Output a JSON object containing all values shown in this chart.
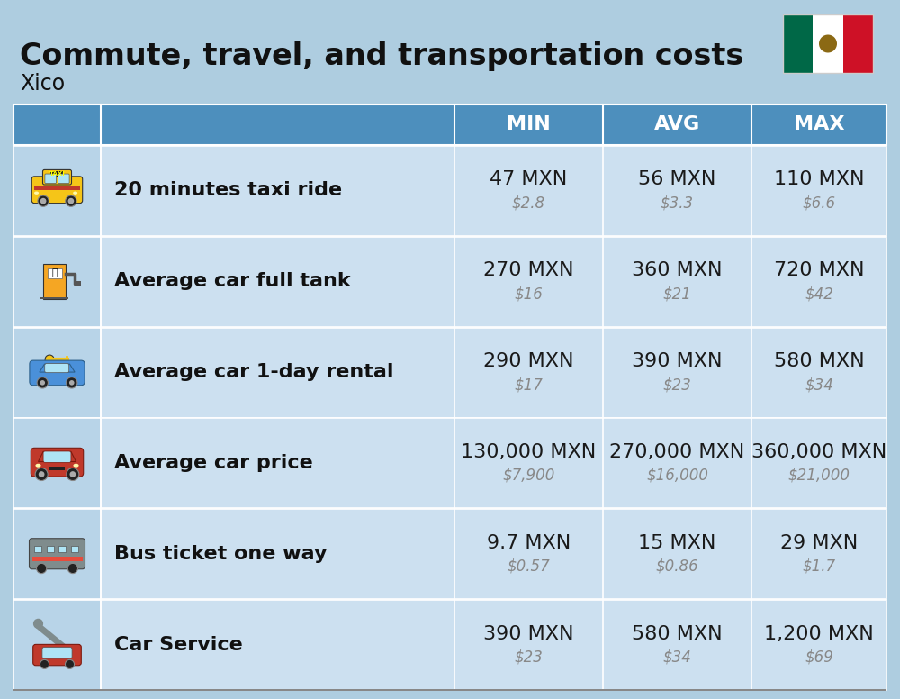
{
  "title": "Commute, travel, and transportation costs",
  "subtitle": "Xico",
  "header_bg": "#4d8fbd",
  "header_text_color": "#ffffff",
  "row_bg": "#cce0f0",
  "icon_bg": "#b8d4e8",
  "bg_color": "#aecde0",
  "title_color": "#111111",
  "subtitle_color": "#111111",
  "mxn_color": "#1a1a1a",
  "usd_color": "#888888",
  "rows": [
    {
      "label": "20 minutes taxi ride",
      "min_mxn": "47 MXN",
      "min_usd": "$2.8",
      "avg_mxn": "56 MXN",
      "avg_usd": "$3.3",
      "max_mxn": "110 MXN",
      "max_usd": "$6.6"
    },
    {
      "label": "Average car full tank",
      "min_mxn": "270 MXN",
      "min_usd": "$16",
      "avg_mxn": "360 MXN",
      "avg_usd": "$21",
      "max_mxn": "720 MXN",
      "max_usd": "$42"
    },
    {
      "label": "Average car 1-day rental",
      "min_mxn": "290 MXN",
      "min_usd": "$17",
      "avg_mxn": "390 MXN",
      "avg_usd": "$23",
      "max_mxn": "580 MXN",
      "max_usd": "$34"
    },
    {
      "label": "Average car price",
      "min_mxn": "130,000 MXN",
      "min_usd": "$7,900",
      "avg_mxn": "270,000 MXN",
      "avg_usd": "$16,000",
      "max_mxn": "360,000 MXN",
      "max_usd": "$21,000"
    },
    {
      "label": "Bus ticket one way",
      "min_mxn": "9.7 MXN",
      "min_usd": "$0.57",
      "avg_mxn": "15 MXN",
      "avg_usd": "$0.86",
      "max_mxn": "29 MXN",
      "max_usd": "$1.7"
    },
    {
      "label": "Car Service",
      "min_mxn": "390 MXN",
      "min_usd": "$23",
      "avg_mxn": "580 MXN",
      "avg_usd": "$34",
      "max_mxn": "1,200 MXN",
      "max_usd": "$69"
    }
  ],
  "mxn_fontsize": 16,
  "usd_fontsize": 12,
  "label_fontsize": 16,
  "header_fontsize": 16,
  "title_fontsize": 24,
  "subtitle_fontsize": 17
}
